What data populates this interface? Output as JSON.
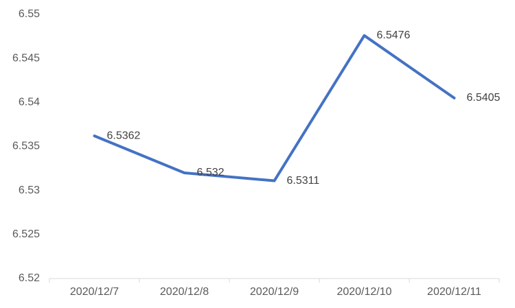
{
  "chart_data": {
    "type": "line",
    "categories": [
      "2020/12/7",
      "2020/12/8",
      "2020/12/9",
      "2020/12/10",
      "2020/12/11"
    ],
    "values": [
      6.5362,
      6.532,
      6.5311,
      6.5476,
      6.5405
    ],
    "color": "#4472c4",
    "ylim": [
      6.52,
      6.55
    ],
    "yticks": [
      6.52,
      6.525,
      6.53,
      6.535,
      6.54,
      6.545,
      6.55
    ],
    "grid": false,
    "data_labels": true
  }
}
